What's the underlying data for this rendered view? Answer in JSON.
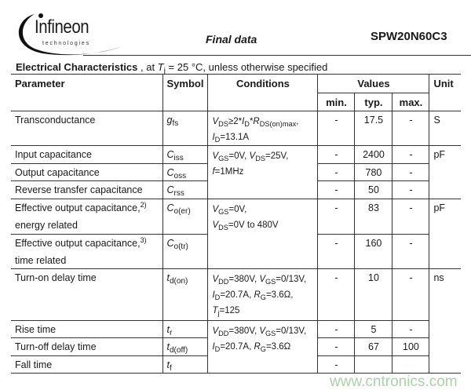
{
  "header": {
    "logo_brand": "Infineon",
    "logo_sub": "technologies",
    "status": "Final data",
    "part_number": "SPW20N60C3"
  },
  "section": {
    "title": "Electrical Characteristics",
    "cond_prefix": " , at ",
    "tj": "T",
    "tj_sub": "j",
    "cond_rest": " = 25 °C, unless otherwise specified"
  },
  "columns": {
    "parameter": "Parameter",
    "symbol": "Symbol",
    "conditions": "Conditions",
    "values": "Values",
    "min": "min.",
    "typ": "typ.",
    "max": "max.",
    "unit": "Unit"
  },
  "rows": [
    {
      "param": "Transconductance",
      "sym": [
        "g",
        "fs"
      ],
      "cond": [
        [
          [
            "i",
            "V"
          ],
          [
            "s",
            "DS"
          ],
          [
            "t",
            "≥2*"
          ],
          [
            "i",
            "I"
          ],
          [
            "s",
            "D"
          ],
          [
            "t",
            "*"
          ],
          [
            "i",
            "R"
          ],
          [
            "s",
            "DS(on)max"
          ],
          [
            "t",
            ","
          ]
        ],
        [
          [
            "i",
            "I"
          ],
          [
            "s",
            "D"
          ],
          [
            "t",
            "=13.1A"
          ]
        ]
      ],
      "condspan": 1,
      "min": "-",
      "typ": "17.5",
      "max": "-",
      "unit": "S",
      "unitspan": 1,
      "h": 45
    },
    {
      "param": "Input capacitance",
      "sym": [
        "C",
        "iss"
      ],
      "cond": [
        [
          [
            "i",
            "V"
          ],
          [
            "s",
            "GS"
          ],
          [
            "t",
            "=0V, "
          ],
          [
            "i",
            "V"
          ],
          [
            "s",
            "DS"
          ],
          [
            "t",
            "=25V,"
          ]
        ],
        [
          [
            "i",
            "f"
          ],
          [
            "t",
            "=1MHz"
          ]
        ]
      ],
      "condspan": 3,
      "min": "-",
      "typ": "2400",
      "max": "-",
      "unit": "pF",
      "unitspan": 3,
      "h": 23
    },
    {
      "param": "Output capacitance",
      "sym": [
        "C",
        "oss"
      ],
      "min": "-",
      "typ": "780",
      "max": "-",
      "h": 22
    },
    {
      "param": "Reverse transfer capacitance",
      "sym": [
        "C",
        "rss"
      ],
      "min": "-",
      "typ": "50",
      "max": "-",
      "h": 23
    },
    {
      "param": "Effective output capacitance,",
      "note": "2)",
      "param2": "energy related",
      "sym": [
        "C",
        "o(er)"
      ],
      "cond": [
        [
          [
            "i",
            "V"
          ],
          [
            "s",
            "GS"
          ],
          [
            "t",
            "=0V,"
          ]
        ],
        [
          [
            "i",
            "V"
          ],
          [
            "s",
            "DS"
          ],
          [
            "t",
            "=0V to 480V"
          ]
        ]
      ],
      "condspan": 2,
      "min": "-",
      "typ": "83",
      "max": "-",
      "unit": "pF",
      "unitspan": 2,
      "h": 45
    },
    {
      "param": "Effective output capacitance,",
      "note": "3)",
      "param2": "time related",
      "sym": [
        "C",
        "o(tr)"
      ],
      "min": "-",
      "typ": "160",
      "max": "-",
      "h": 44
    },
    {
      "param": "Turn-on delay time",
      "sym": [
        "t",
        "d(on)"
      ],
      "cond": [
        [
          [
            "i",
            "V"
          ],
          [
            "s",
            "DD"
          ],
          [
            "t",
            "=380V, "
          ],
          [
            "i",
            "V"
          ],
          [
            "s",
            "GS"
          ],
          [
            "t",
            "=0/13V,"
          ]
        ],
        [
          [
            "i",
            "I"
          ],
          [
            "s",
            "D"
          ],
          [
            "t",
            "=20.7A, "
          ],
          [
            "i",
            "R"
          ],
          [
            "s",
            "G"
          ],
          [
            "t",
            "=3.6Ω,"
          ]
        ],
        [
          [
            "i",
            "T"
          ],
          [
            "s",
            "j"
          ],
          [
            "t",
            "=125"
          ]
        ]
      ],
      "condspan": 1,
      "min": "-",
      "typ": "10",
      "max": "-",
      "unit": "ns",
      "unitspan": 4,
      "h": 69
    },
    {
      "param": "Rise time",
      "sym": [
        "t",
        "r"
      ],
      "cond": [
        [
          [
            "i",
            "V"
          ],
          [
            "s",
            "DD"
          ],
          [
            "t",
            "=380V, "
          ],
          [
            "i",
            "V"
          ],
          [
            "s",
            "GS"
          ],
          [
            "t",
            "=0/13V,"
          ]
        ],
        [
          [
            "i",
            "I"
          ],
          [
            "s",
            "D"
          ],
          [
            "t",
            "=20.7A, "
          ],
          [
            "i",
            "R"
          ],
          [
            "s",
            "G"
          ],
          [
            "t",
            "=3.6Ω"
          ]
        ]
      ],
      "condspan": 3,
      "min": "-",
      "typ": "5",
      "max": "-",
      "h": 22
    },
    {
      "param": "Turn-off delay time",
      "sym": [
        "t",
        "d(off)"
      ],
      "min": "-",
      "typ": "67",
      "max": "100",
      "h": 23
    },
    {
      "param": "Fall time",
      "sym": [
        "t",
        "f"
      ],
      "min": "-",
      "typ": "",
      "max": "",
      "h": 22
    }
  ],
  "watermark": "www.cntronics.com"
}
